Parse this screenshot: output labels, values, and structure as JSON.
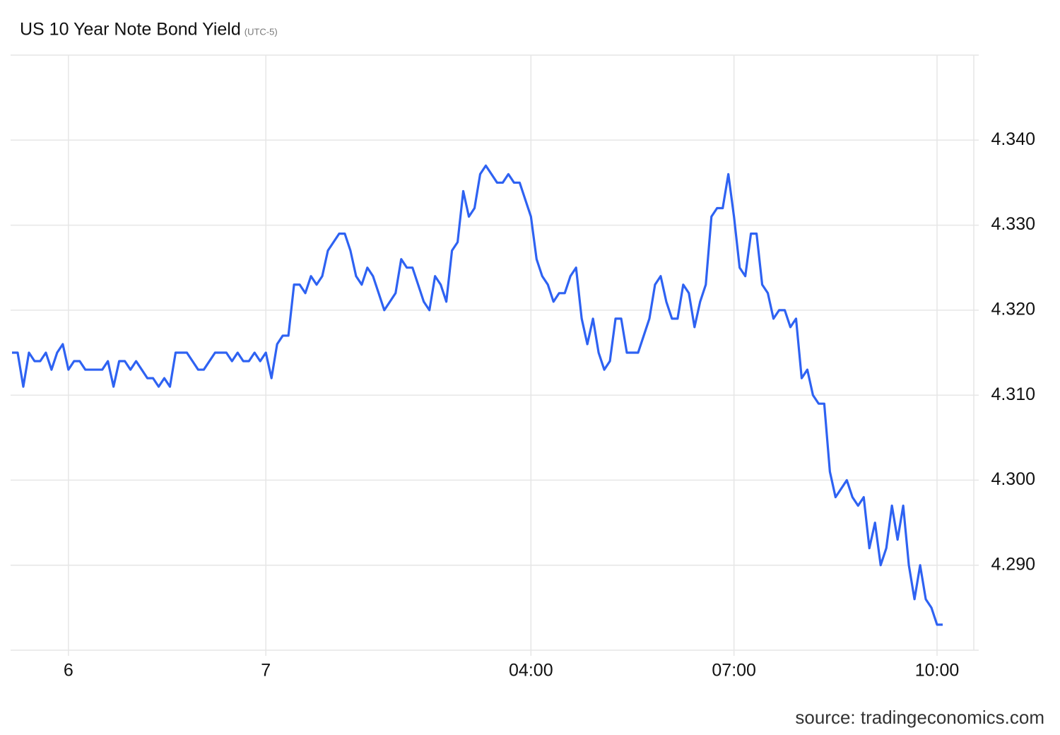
{
  "chart_data": {
    "type": "line",
    "title": "US 10 Year Note Bond Yield",
    "subtitle": "(UTC-5)",
    "source": "source: tradingeconomics.com",
    "color": "#2e62f2",
    "grid": true,
    "categories": [
      null,
      null,
      null,
      null,
      null,
      null,
      null,
      null,
      null,
      null,
      "6",
      null,
      null,
      null,
      null,
      null,
      null,
      null,
      null,
      null,
      null,
      null,
      null,
      null,
      null,
      null,
      null,
      null,
      null,
      null,
      null,
      null,
      null,
      null,
      null,
      null,
      null,
      null,
      null,
      null,
      null,
      null,
      null,
      null,
      null,
      "7",
      null,
      null,
      null,
      null,
      null,
      null,
      null,
      null,
      null,
      null,
      null,
      null,
      null,
      null,
      null,
      null,
      null,
      null,
      null,
      null,
      null,
      null,
      null,
      null,
      null,
      null,
      null,
      null,
      null,
      null,
      null,
      null,
      null,
      null,
      null,
      null,
      null,
      null,
      null,
      null,
      null,
      null,
      null,
      null,
      null,
      null,
      "04:00",
      null,
      null,
      null,
      null,
      null,
      null,
      null,
      null,
      null,
      null,
      null,
      null,
      null,
      null,
      null,
      null,
      null,
      null,
      null,
      null,
      null,
      null,
      null,
      null,
      null,
      null,
      null,
      null,
      null,
      null,
      null,
      null,
      null,
      null,
      null,
      "07:00",
      null,
      null,
      null,
      null,
      null,
      null,
      null,
      null,
      null,
      null,
      null,
      null,
      null,
      null,
      null,
      null,
      null,
      null,
      null,
      null,
      null,
      null,
      null,
      null,
      null,
      null,
      null,
      null,
      null,
      null,
      null,
      null,
      null,
      null,
      null,
      "10:00",
      null
    ],
    "values": [
      4.315,
      4.315,
      4.311,
      4.315,
      4.314,
      4.314,
      4.315,
      4.313,
      4.315,
      4.316,
      4.313,
      4.314,
      4.314,
      4.313,
      4.313,
      4.313,
      4.313,
      4.314,
      4.311,
      4.314,
      4.314,
      4.313,
      4.314,
      4.313,
      4.312,
      4.312,
      4.311,
      4.312,
      4.311,
      4.315,
      4.315,
      4.315,
      4.314,
      4.313,
      4.313,
      4.314,
      4.315,
      4.315,
      4.315,
      4.314,
      4.315,
      4.314,
      4.314,
      4.315,
      4.314,
      4.315,
      4.312,
      4.316,
      4.317,
      4.317,
      4.323,
      4.323,
      4.322,
      4.324,
      4.323,
      4.324,
      4.327,
      4.328,
      4.329,
      4.329,
      4.327,
      4.324,
      4.323,
      4.325,
      4.324,
      4.322,
      4.32,
      4.321,
      4.322,
      4.326,
      4.325,
      4.325,
      4.323,
      4.321,
      4.32,
      4.324,
      4.323,
      4.321,
      4.327,
      4.328,
      4.334,
      4.331,
      4.332,
      4.336,
      4.337,
      4.336,
      4.335,
      4.335,
      4.336,
      4.335,
      4.335,
      4.333,
      4.331,
      4.326,
      4.324,
      4.323,
      4.321,
      4.322,
      4.322,
      4.324,
      4.325,
      4.319,
      4.316,
      4.319,
      4.315,
      4.313,
      4.314,
      4.319,
      4.319,
      4.315,
      4.315,
      4.315,
      4.317,
      4.319,
      4.323,
      4.324,
      4.321,
      4.319,
      4.319,
      4.323,
      4.322,
      4.318,
      4.321,
      4.323,
      4.331,
      4.332,
      4.332,
      4.336,
      4.331,
      4.325,
      4.324,
      4.329,
      4.329,
      4.323,
      4.322,
      4.319,
      4.32,
      4.32,
      4.318,
      4.319,
      4.312,
      4.313,
      4.31,
      4.309,
      4.309,
      4.301,
      4.298,
      4.299,
      4.3,
      4.298,
      4.297,
      4.298,
      4.292,
      4.295,
      4.29,
      4.292,
      4.297,
      4.293,
      4.297,
      4.29,
      4.286,
      4.29,
      4.286,
      4.285,
      4.283,
      4.283
    ],
    "ylim": [
      4.28,
      4.35
    ],
    "yticks": [
      {
        "value": 4.29,
        "label": "4.290"
      },
      {
        "value": 4.3,
        "label": "4.300"
      },
      {
        "value": 4.31,
        "label": "4.310"
      },
      {
        "value": 4.32,
        "label": "4.320"
      },
      {
        "value": 4.33,
        "label": "4.330"
      },
      {
        "value": 4.34,
        "label": "4.340"
      }
    ]
  }
}
